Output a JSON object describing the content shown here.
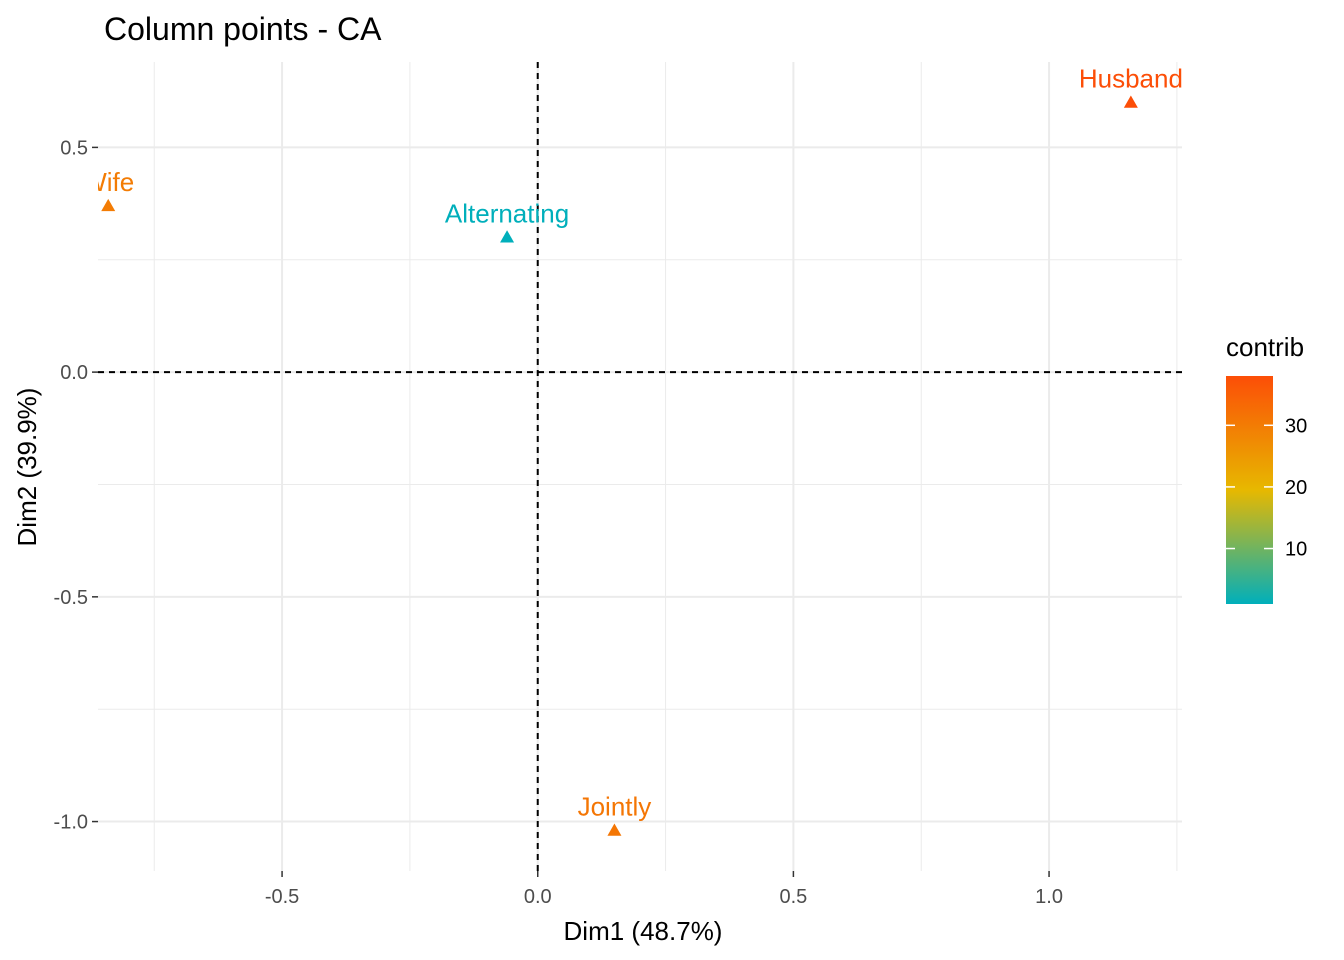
{
  "chart_data": {
    "type": "scatter",
    "title": "Column points - CA",
    "xlabel": "Dim1 (48.7%)",
    "ylabel": "Dim2 (39.9%)",
    "xlim": [
      -0.86,
      1.26
    ],
    "ylim": [
      -1.11,
      0.69
    ],
    "x_ticks": [
      -0.5,
      0.0,
      0.5,
      1.0
    ],
    "x_tick_labels": [
      "-0.5",
      "0.0",
      "0.5",
      "1.0"
    ],
    "y_ticks": [
      -1.0,
      -0.5,
      0.0,
      0.5
    ],
    "y_tick_labels": [
      "-1.0",
      "-0.5",
      "0.0",
      "0.5"
    ],
    "grid": true,
    "reference_lines": {
      "x": 0,
      "y": 0,
      "style": "dashed"
    },
    "marker": "triangle",
    "points": [
      {
        "label": "Wife",
        "x": -0.84,
        "y": 0.37,
        "contrib": 30.0
      },
      {
        "label": "Alternating",
        "x": -0.06,
        "y": 0.3,
        "contrib": 1.0
      },
      {
        "label": "Husband",
        "x": 1.16,
        "y": 0.6,
        "contrib": 38.0
      },
      {
        "label": "Jointly",
        "x": 0.15,
        "y": -1.02,
        "contrib": 31.0
      }
    ],
    "legend": {
      "title": "contrib",
      "placement": "right",
      "type": "colorbar",
      "range": [
        1,
        38
      ],
      "ticks": [
        10,
        20,
        30
      ],
      "tick_labels": [
        "10",
        "20",
        "30"
      ],
      "colors": [
        "#00AFBB",
        "#E7B800",
        "#FC4E07"
      ]
    }
  }
}
